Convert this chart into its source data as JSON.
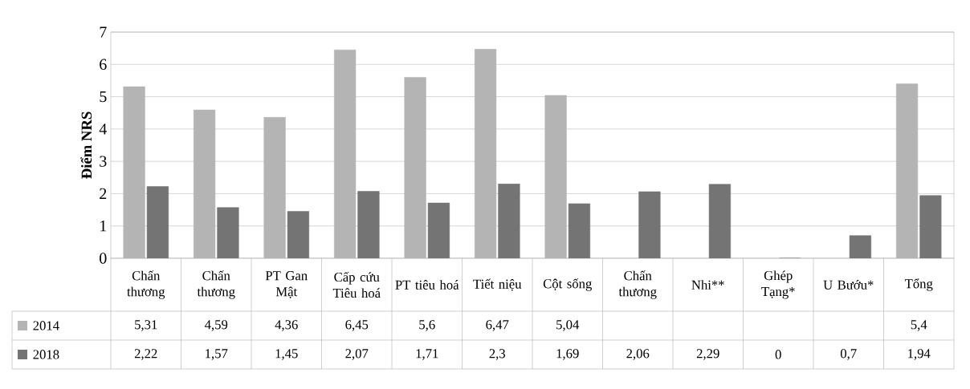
{
  "chart_data": {
    "type": "bar",
    "ylabel": "Điểm NRS",
    "categories": [
      "Chấn thương",
      "Chấn thương",
      "PT Gan Mật",
      "Cấp cứu Tiêu hoá",
      "PT tiêu hoá",
      "Tiết niệu",
      "Cột sống",
      "Chấn thương",
      "Nhi**",
      "Ghép Tạng*",
      "U Bướu*",
      "Tổng"
    ],
    "series": [
      {
        "name": "2014",
        "color": "#b4b4b4",
        "values": [
          5.31,
          4.59,
          4.36,
          6.45,
          5.6,
          6.47,
          5.04,
          null,
          null,
          null,
          null,
          5.4
        ],
        "value_labels": [
          "5,31",
          "4,59",
          "4,36",
          "6,45",
          "5,6",
          "6,47",
          "5,04",
          null,
          null,
          null,
          null,
          "5,4"
        ]
      },
      {
        "name": "2018",
        "color": "#747474",
        "values": [
          2.22,
          1.57,
          1.45,
          2.07,
          1.71,
          2.3,
          1.69,
          2.06,
          2.29,
          0,
          0.7,
          1.94
        ],
        "value_labels": [
          "2,22",
          "1,57",
          "1,45",
          "2,07",
          "1,71",
          "2,3",
          "1,69",
          "2,06",
          "2,29",
          "0",
          "0,7",
          "1,94"
        ]
      }
    ],
    "ylim": [
      0,
      7
    ],
    "yticks": [
      0,
      1,
      2,
      3,
      4,
      5,
      6,
      7
    ],
    "grid": "y",
    "legend": "bottom"
  }
}
